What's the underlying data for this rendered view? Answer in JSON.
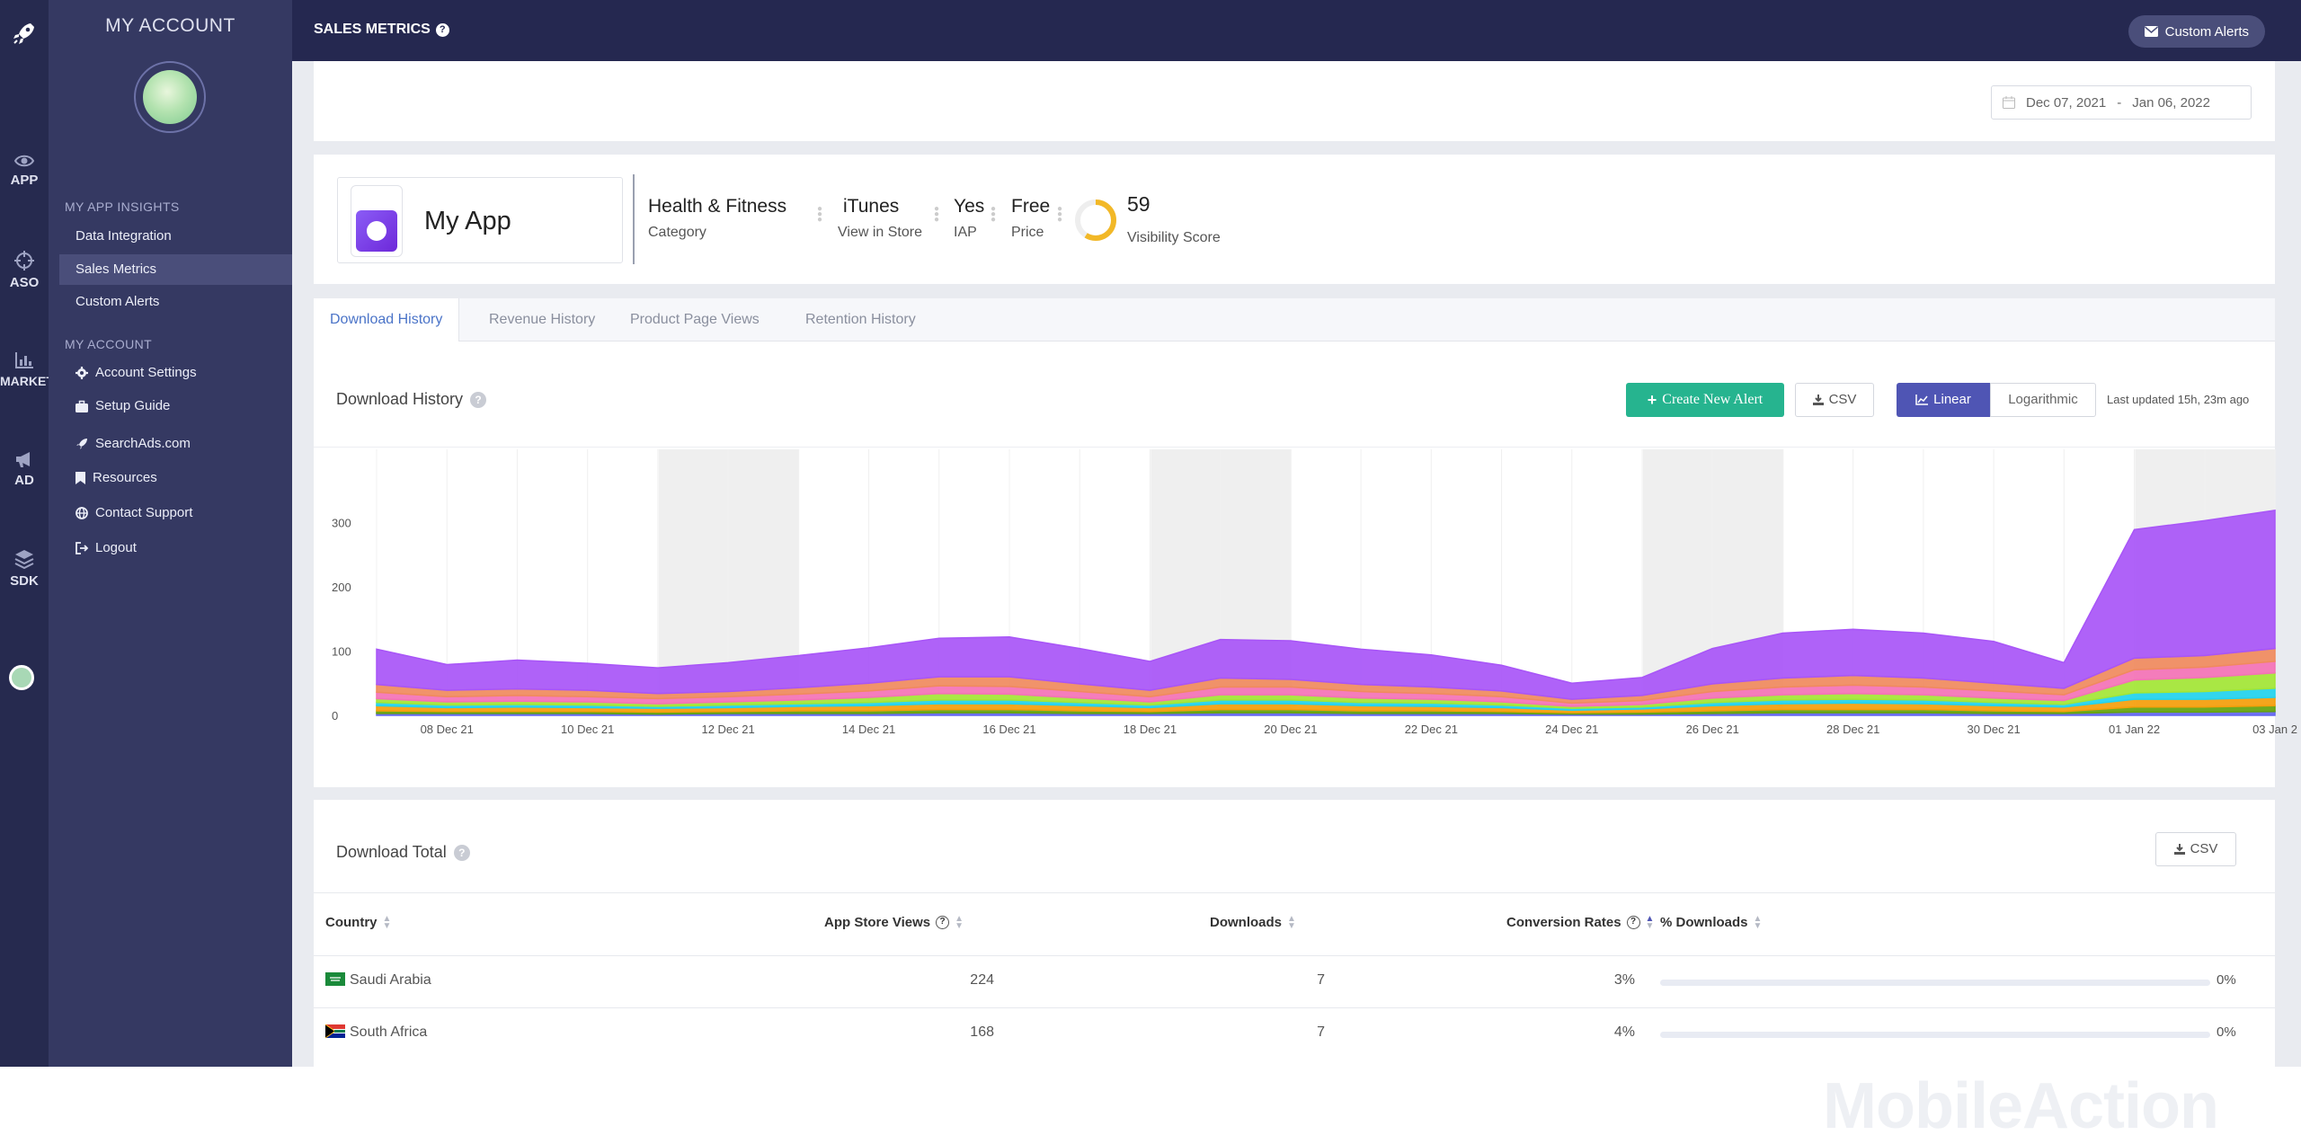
{
  "rail": {
    "items": [
      {
        "label": "APP",
        "icon": "eye-icon"
      },
      {
        "label": "ASO",
        "icon": "crosshair-icon"
      },
      {
        "label": "MARKET",
        "icon": "bar-chart-icon"
      },
      {
        "label": "AD",
        "icon": "megaphone-icon"
      },
      {
        "label": "SDK",
        "icon": "layers-icon"
      }
    ]
  },
  "sidebar": {
    "title": "MY ACCOUNT",
    "insights_header": "MY APP INSIGHTS",
    "insights_items": [
      {
        "label": "Data Integration"
      },
      {
        "label": "Sales Metrics",
        "active": true
      },
      {
        "label": "Custom Alerts"
      }
    ],
    "account_header": "MY ACCOUNT",
    "account_items": [
      {
        "label": "Account Settings",
        "icon": "gear-icon"
      },
      {
        "label": "Setup Guide",
        "icon": "briefcase-icon"
      },
      {
        "label": "SearchAds.com",
        "icon": "rocket-icon"
      },
      {
        "label": "Resources",
        "icon": "bookmark-icon"
      },
      {
        "label": "Contact Support",
        "icon": "globe-icon"
      },
      {
        "label": "Logout",
        "icon": "logout-icon"
      }
    ]
  },
  "header": {
    "title": "SALES METRICS",
    "custom_alerts": "Custom Alerts"
  },
  "date_range": {
    "start": "Dec 07, 2021",
    "separator": "-",
    "end": "Jan 06, 2022"
  },
  "app": {
    "name": "My App",
    "category": "Health & Fitness",
    "category_label": "Category",
    "store": "iTunes",
    "store_label": "View in Store",
    "iap": "Yes",
    "iap_label": "IAP",
    "price": "Free",
    "price_label": "Price",
    "visibility_score": "59",
    "visibility_label": "Visibility Score",
    "visibility_fraction": 0.59
  },
  "tabs": [
    {
      "label": "Download History",
      "active": true
    },
    {
      "label": "Revenue History"
    },
    {
      "label": "Product Page Views"
    },
    {
      "label": "Retention History"
    }
  ],
  "download_history": {
    "title": "Download History",
    "create_alert": "Create New Alert",
    "csv": "CSV",
    "linear": "Linear",
    "logarithmic": "Logarithmic",
    "last_updated": "Last updated 15h, 23m ago"
  },
  "chart_data": {
    "type": "area",
    "stacked": true,
    "ylim": [
      0,
      400
    ],
    "yticks": [
      "0",
      "100",
      "200",
      "300"
    ],
    "x_tick_labels": [
      "08 Dec 21",
      "10 Dec 21",
      "12 Dec 21",
      "14 Dec 21",
      "16 Dec 21",
      "18 Dec 21",
      "20 Dec 21",
      "22 Dec 21",
      "24 Dec 21",
      "26 Dec 21",
      "28 Dec 21",
      "30 Dec 21",
      "01 Jan 22",
      "03 Jan 2"
    ],
    "x": [
      "07 Dec",
      "08 Dec",
      "09 Dec",
      "10 Dec",
      "11 Dec",
      "12 Dec",
      "13 Dec",
      "14 Dec",
      "15 Dec",
      "16 Dec",
      "17 Dec",
      "18 Dec",
      "19 Dec",
      "20 Dec",
      "21 Dec",
      "22 Dec",
      "23 Dec",
      "24 Dec",
      "25 Dec",
      "26 Dec",
      "27 Dec",
      "28 Dec",
      "29 Dec",
      "30 Dec",
      "31 Dec",
      "01 Jan",
      "02 Jan",
      "03 Jan"
    ],
    "weekend_bands": [
      [
        4,
        6
      ],
      [
        11,
        13
      ],
      [
        18,
        20
      ],
      [
        25,
        27
      ]
    ],
    "series": [
      {
        "color": "#a855f7",
        "values": [
          55,
          40,
          45,
          42,
          40,
          45,
          50,
          55,
          60,
          62,
          55,
          45,
          60,
          60,
          55,
          50,
          40,
          25,
          28,
          55,
          70,
          72,
          70,
          65,
          40,
          200,
          210,
          215
        ]
      },
      {
        "color": "#f08a5d",
        "values": [
          12,
          10,
          10,
          10,
          8,
          8,
          10,
          12,
          14,
          15,
          12,
          10,
          14,
          12,
          11,
          10,
          9,
          6,
          8,
          12,
          14,
          15,
          14,
          12,
          10,
          18,
          18,
          20
        ]
      },
      {
        "color": "#f472b6",
        "values": [
          10,
          8,
          9,
          8,
          8,
          8,
          9,
          10,
          12,
          12,
          10,
          8,
          12,
          12,
          10,
          9,
          8,
          5,
          6,
          10,
          12,
          13,
          12,
          11,
          9,
          16,
          16,
          18
        ]
      },
      {
        "color": "#a3e635",
        "values": [
          6,
          5,
          5,
          5,
          4,
          5,
          6,
          8,
          10,
          9,
          7,
          5,
          8,
          8,
          7,
          6,
          5,
          3,
          4,
          7,
          8,
          9,
          8,
          7,
          6,
          20,
          22,
          24
        ]
      },
      {
        "color": "#22d3ee",
        "values": [
          5,
          4,
          4,
          4,
          3,
          4,
          4,
          5,
          6,
          6,
          5,
          4,
          6,
          6,
          5,
          5,
          4,
          3,
          3,
          5,
          6,
          6,
          6,
          5,
          4,
          10,
          12,
          14
        ]
      },
      {
        "color": "#f59e0b",
        "values": [
          8,
          6,
          7,
          6,
          6,
          6,
          7,
          8,
          9,
          9,
          8,
          6,
          9,
          9,
          8,
          7,
          6,
          4,
          5,
          8,
          9,
          10,
          9,
          8,
          7,
          12,
          12,
          13
        ]
      },
      {
        "color": "#65a30d",
        "values": [
          4,
          3,
          3,
          3,
          3,
          3,
          4,
          4,
          5,
          5,
          4,
          3,
          5,
          5,
          4,
          4,
          3,
          2,
          3,
          4,
          5,
          5,
          5,
          4,
          3,
          8,
          8,
          9
        ]
      },
      {
        "color": "#6366f1",
        "values": [
          3,
          3,
          3,
          3,
          2,
          3,
          3,
          3,
          4,
          4,
          3,
          3,
          4,
          4,
          3,
          3,
          3,
          2,
          2,
          3,
          4,
          4,
          4,
          3,
          3,
          5,
          5,
          6
        ]
      }
    ]
  },
  "download_total": {
    "title": "Download Total",
    "csv": "CSV",
    "columns": [
      "Country",
      "App Store Views",
      "Downloads",
      "Conversion Rates",
      "% Downloads"
    ],
    "rows": [
      {
        "country": "Saudi Arabia",
        "views": "224",
        "downloads": "7",
        "conversion": "3%",
        "pct": "0%",
        "flag": "sa"
      },
      {
        "country": "South Africa",
        "views": "168",
        "downloads": "7",
        "conversion": "4%",
        "pct": "0%",
        "flag": "za"
      }
    ]
  },
  "brand": "MobileAction"
}
